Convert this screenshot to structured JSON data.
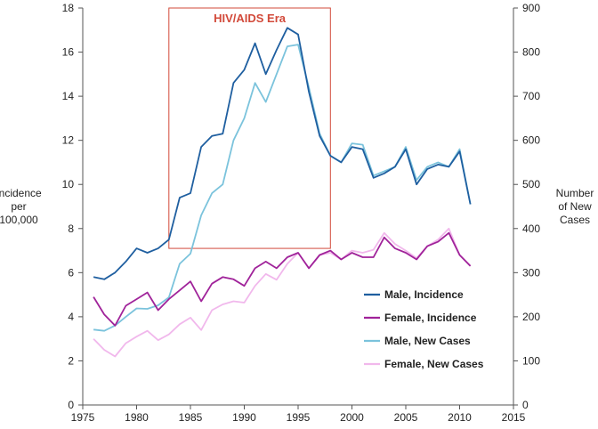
{
  "chart_data": {
    "type": "line",
    "title": "",
    "xlabel": "",
    "ylabel_left": [
      "Incidence",
      "per",
      "100,000"
    ],
    "ylabel_right": [
      "Number",
      "of New",
      "Cases"
    ],
    "xlim": [
      1975,
      2015
    ],
    "ylim_left": [
      0,
      18
    ],
    "ylim_right": [
      0,
      900
    ],
    "x_ticks": [
      "1975",
      "1980",
      "1985",
      "1990",
      "1995",
      "2000",
      "2005",
      "2010",
      "2015"
    ],
    "y_left_ticks": [
      "0",
      "2",
      "4",
      "6",
      "8",
      "10",
      "12",
      "14",
      "16",
      "18"
    ],
    "y_right_ticks": [
      "0",
      "100",
      "200",
      "300",
      "400",
      "500",
      "600",
      "700",
      "800",
      "900"
    ],
    "grid": false,
    "legend_position": "bottom-right",
    "annotation": {
      "label": "HIV/AIDS Era",
      "x_range": [
        1983,
        1998
      ],
      "y_range_left": [
        7.1,
        18
      ],
      "color": "#d24a3a"
    },
    "x": [
      1976,
      1977,
      1978,
      1979,
      1980,
      1981,
      1982,
      1983,
      1984,
      1985,
      1986,
      1987,
      1988,
      1989,
      1990,
      1991,
      1992,
      1993,
      1994,
      1995,
      1996,
      1997,
      1998,
      1999,
      2000,
      2001,
      2002,
      2003,
      2004,
      2005,
      2006,
      2007,
      2008,
      2009,
      2010,
      2011
    ],
    "series": [
      {
        "name": "Male, Incidence",
        "axis": "left",
        "color": "#1f5fa0",
        "values": [
          5.8,
          5.7,
          6.0,
          6.5,
          7.1,
          6.9,
          7.1,
          7.5,
          9.4,
          9.6,
          11.7,
          12.2,
          12.3,
          14.6,
          15.2,
          16.4,
          15.0,
          16.1,
          17.1,
          16.8,
          14.2,
          12.2,
          11.3,
          11.0,
          11.7,
          11.6,
          10.3,
          10.5,
          10.8,
          11.6,
          10.0,
          10.7,
          10.9,
          10.8,
          11.5,
          9.1
        ]
      },
      {
        "name": "Female, Incidence",
        "axis": "left",
        "color": "#a0239a",
        "values": [
          4.9,
          4.1,
          3.6,
          4.5,
          4.8,
          5.1,
          4.3,
          4.8,
          5.2,
          5.6,
          4.7,
          5.5,
          5.8,
          5.7,
          5.4,
          6.2,
          6.5,
          6.2,
          6.7,
          6.9,
          6.2,
          6.8,
          7.0,
          6.6,
          6.9,
          6.7,
          6.7,
          7.6,
          7.1,
          6.9,
          6.6,
          7.2,
          7.4,
          7.8,
          6.8,
          6.3
        ]
      },
      {
        "name": "Male, New Cases",
        "axis": "right",
        "color": "#7bc3dc",
        "values": [
          171,
          168,
          180,
          200,
          219,
          218,
          226,
          244,
          320,
          343,
          430,
          480,
          500,
          600,
          650,
          730,
          687,
          750,
          813,
          817,
          720,
          615,
          565,
          550,
          593,
          590,
          520,
          530,
          540,
          585,
          510,
          540,
          550,
          540,
          580,
          455
        ]
      },
      {
        "name": "Female, New Cases",
        "axis": "right",
        "color": "#f1b8ec",
        "values": [
          150,
          125,
          110,
          140,
          155,
          168,
          147,
          160,
          183,
          198,
          170,
          215,
          228,
          235,
          232,
          270,
          297,
          284,
          320,
          345,
          310,
          340,
          345,
          330,
          350,
          345,
          352,
          390,
          365,
          350,
          333,
          360,
          375,
          400,
          340,
          315
        ]
      }
    ]
  }
}
